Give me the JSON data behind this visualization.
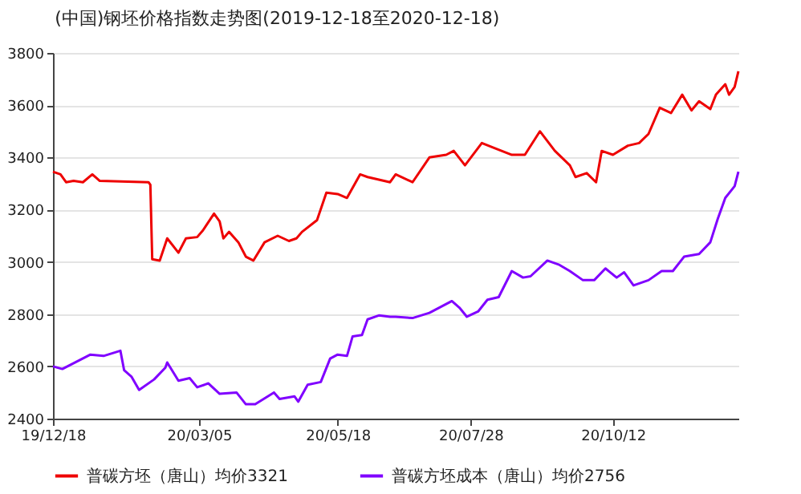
{
  "chart_data": {
    "type": "line",
    "title": "(中国)钢坯价格指数走势图(2019-12-18至2020-12-18)",
    "xlim": [
      "2019-12-18",
      "2020-12-18"
    ],
    "xticks": [
      {
        "value": "2019-12-18",
        "label": "19/12/18"
      },
      {
        "value": "2020-03-05",
        "label": "20/03/05"
      },
      {
        "value": "2020-05-18",
        "label": "20/05/18"
      },
      {
        "value": "2020-07-28",
        "label": "20/07/28"
      },
      {
        "value": "2020-10-12",
        "label": "20/10/12"
      }
    ],
    "ylim": [
      2400,
      3800
    ],
    "yticks": [
      2400,
      2600,
      2800,
      3000,
      3200,
      3400,
      3600,
      3800
    ],
    "grid": "y",
    "legend": "bottom",
    "marker": "none",
    "line_style": "solid",
    "series": [
      {
        "name": "普碳方坯（唐山）均价3321",
        "color": "#ee0000",
        "x": [
          "2019-12-18",
          "2019-12-22",
          "2019-12-25",
          "2019-12-29",
          "2020-01-03",
          "2020-01-08",
          "2020-01-12",
          "2020-02-07",
          "2020-02-08",
          "2020-02-09",
          "2020-02-13",
          "2020-02-17",
          "2020-02-23",
          "2020-02-27",
          "2020-03-04",
          "2020-03-07",
          "2020-03-13",
          "2020-03-16",
          "2020-03-18",
          "2020-03-21",
          "2020-03-26",
          "2020-03-30",
          "2020-04-03",
          "2020-04-09",
          "2020-04-16",
          "2020-04-22",
          "2020-04-26",
          "2020-04-29",
          "2020-05-07",
          "2020-05-12",
          "2020-05-18",
          "2020-05-23",
          "2020-05-30",
          "2020-06-03",
          "2020-06-09",
          "2020-06-15",
          "2020-06-18",
          "2020-06-27",
          "2020-07-06",
          "2020-07-15",
          "2020-07-19",
          "2020-07-25",
          "2020-08-03",
          "2020-08-10",
          "2020-08-19",
          "2020-08-26",
          "2020-09-03",
          "2020-09-11",
          "2020-09-19",
          "2020-09-22",
          "2020-09-28",
          "2020-10-03",
          "2020-10-06",
          "2020-10-12",
          "2020-10-20",
          "2020-10-26",
          "2020-10-31",
          "2020-11-06",
          "2020-11-12",
          "2020-11-18",
          "2020-11-23",
          "2020-11-27",
          "2020-12-03",
          "2020-12-06",
          "2020-12-11",
          "2020-12-13",
          "2020-12-16",
          "2020-12-18"
        ],
        "values": [
          3345,
          3335,
          3305,
          3310,
          3305,
          3335,
          3310,
          3305,
          3295,
          3010,
          3005,
          3090,
          3035,
          3090,
          3095,
          3120,
          3185,
          3155,
          3090,
          3115,
          3075,
          3020,
          3005,
          3075,
          3100,
          3080,
          3090,
          3115,
          3160,
          3265,
          3260,
          3245,
          3335,
          3325,
          3315,
          3305,
          3335,
          3305,
          3400,
          3410,
          3425,
          3370,
          3455,
          3435,
          3410,
          3410,
          3500,
          3425,
          3370,
          3325,
          3340,
          3305,
          3425,
          3410,
          3445,
          3455,
          3490,
          3590,
          3570,
          3640,
          3580,
          3615,
          3585,
          3640,
          3680,
          3640,
          3670,
          3730
        ]
      },
      {
        "name": "普碳方坯成本（唐山）均价2756",
        "color": "#8000ff",
        "x": [
          "2019-12-18",
          "2019-12-23",
          "2020-01-07",
          "2020-01-14",
          "2020-01-23",
          "2020-01-25",
          "2020-01-29",
          "2020-02-02",
          "2020-02-10",
          "2020-02-16",
          "2020-02-17",
          "2020-02-23",
          "2020-02-29",
          "2020-03-04",
          "2020-03-10",
          "2020-03-16",
          "2020-03-25",
          "2020-03-30",
          "2020-04-04",
          "2020-04-14",
          "2020-04-17",
          "2020-04-25",
          "2020-04-27",
          "2020-05-02",
          "2020-05-09",
          "2020-05-14",
          "2020-05-18",
          "2020-05-23",
          "2020-05-26",
          "2020-05-31",
          "2020-06-03",
          "2020-06-09",
          "2020-06-15",
          "2020-06-18",
          "2020-06-27",
          "2020-07-06",
          "2020-07-18",
          "2020-07-22",
          "2020-07-26",
          "2020-08-01",
          "2020-08-06",
          "2020-08-12",
          "2020-08-19",
          "2020-08-25",
          "2020-08-29",
          "2020-09-07",
          "2020-09-13",
          "2020-09-19",
          "2020-09-26",
          "2020-10-02",
          "2020-10-08",
          "2020-10-14",
          "2020-10-18",
          "2020-10-23",
          "2020-10-31",
          "2020-11-07",
          "2020-11-13",
          "2020-11-19",
          "2020-11-27",
          "2020-12-03",
          "2020-12-07",
          "2020-12-11",
          "2020-12-16",
          "2020-12-18"
        ],
        "values": [
          2600,
          2590,
          2645,
          2640,
          2660,
          2585,
          2560,
          2510,
          2550,
          2595,
          2615,
          2545,
          2555,
          2520,
          2535,
          2495,
          2500,
          2455,
          2455,
          2500,
          2475,
          2485,
          2465,
          2530,
          2540,
          2630,
          2645,
          2640,
          2715,
          2720,
          2780,
          2795,
          2790,
          2790,
          2785,
          2805,
          2850,
          2825,
          2790,
          2810,
          2855,
          2865,
          2965,
          2940,
          2945,
          3005,
          2990,
          2965,
          2930,
          2930,
          2975,
          2940,
          2960,
          2910,
          2930,
          2965,
          2965,
          3020,
          3030,
          3075,
          3165,
          3245,
          3290,
          3345
        ]
      }
    ]
  }
}
